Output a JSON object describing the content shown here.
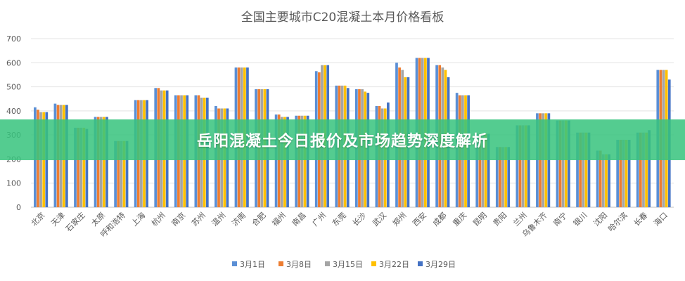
{
  "chart_data": {
    "type": "bar",
    "title": "全国主要城市C20混凝土本月价格看板",
    "ylim": [
      0,
      700
    ],
    "yticks": [
      0,
      100,
      200,
      300,
      400,
      500,
      600,
      700
    ],
    "grid": true,
    "legend_position": "bottom",
    "categories": [
      "北京",
      "天津",
      "石家庄",
      "太原",
      "呼和浩特",
      "上海",
      "杭州",
      "南京",
      "苏州",
      "温州",
      "济南",
      "合肥",
      "福州",
      "南昌",
      "广州",
      "东莞",
      "长沙",
      "武汉",
      "郑州",
      "西安",
      "成都",
      "重庆",
      "昆明",
      "贵阳",
      "兰州",
      "乌鲁木齐",
      "南宁",
      "银川",
      "沈阳",
      "哈尔滨",
      "长春",
      "海口"
    ],
    "series": [
      {
        "name": "3月1日",
        "color": "#5b8fd5",
        "values": [
          415,
          430,
          330,
          375,
          275,
          445,
          495,
          465,
          465,
          420,
          580,
          490,
          385,
          380,
          565,
          505,
          490,
          420,
          600,
          620,
          590,
          475,
          305,
          250,
          340,
          390,
          360,
          310,
          235,
          280,
          310,
          570
        ]
      },
      {
        "name": "3月8日",
        "color": "#ed7d31",
        "values": [
          405,
          425,
          330,
          375,
          275,
          445,
          495,
          465,
          465,
          410,
          580,
          490,
          385,
          380,
          560,
          505,
          490,
          420,
          580,
          620,
          590,
          465,
          305,
          250,
          340,
          390,
          360,
          310,
          235,
          280,
          310,
          570
        ]
      },
      {
        "name": "3月15日",
        "color": "#a5a5a5",
        "values": [
          395,
          425,
          330,
          375,
          275,
          445,
          485,
          465,
          455,
          410,
          580,
          490,
          375,
          380,
          590,
          505,
          490,
          410,
          570,
          620,
          580,
          465,
          305,
          250,
          340,
          390,
          360,
          310,
          220,
          280,
          310,
          570
        ]
      },
      {
        "name": "3月22日",
        "color": "#ffc000",
        "values": [
          395,
          425,
          330,
          375,
          275,
          445,
          485,
          465,
          455,
          410,
          580,
          490,
          375,
          380,
          590,
          505,
          480,
          410,
          540,
          620,
          570,
          465,
          305,
          250,
          340,
          390,
          360,
          310,
          220,
          280,
          310,
          570
        ]
      },
      {
        "name": "3月29日",
        "color": "#4472c4",
        "values": [
          395,
          425,
          325,
          375,
          275,
          445,
          485,
          465,
          455,
          410,
          580,
          490,
          375,
          380,
          590,
          495,
          475,
          435,
          540,
          620,
          540,
          465,
          305,
          250,
          340,
          390,
          360,
          310,
          220,
          280,
          320,
          530
        ]
      }
    ]
  },
  "banner": {
    "text": "岳阳混凝土今日报价及市场趋势深度解析"
  }
}
